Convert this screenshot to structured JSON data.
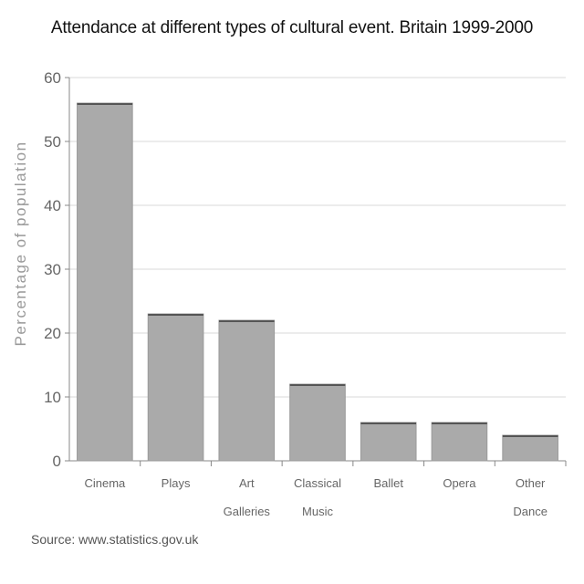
{
  "chart_data": {
    "type": "bar",
    "title": "Attendance at different types of cultural event. Britain 1999-2000",
    "ylabel": "Percentage of population",
    "xlabel": "",
    "categories": [
      [
        "Cinema"
      ],
      [
        "Plays"
      ],
      [
        "Art",
        "Galleries"
      ],
      [
        "Classical",
        "Music"
      ],
      [
        "Ballet"
      ],
      [
        "Opera"
      ],
      [
        "Other",
        "Dance"
      ]
    ],
    "values": [
      56,
      23,
      22,
      12,
      6,
      6,
      4
    ],
    "ylim": [
      0,
      60
    ],
    "yticks": [
      0,
      10,
      20,
      30,
      40,
      50,
      60
    ],
    "grid": true,
    "bar_color": "#aaaaaa",
    "bar_edge_color": "#555555"
  },
  "source": "Source: www.statistics.gov.uk"
}
